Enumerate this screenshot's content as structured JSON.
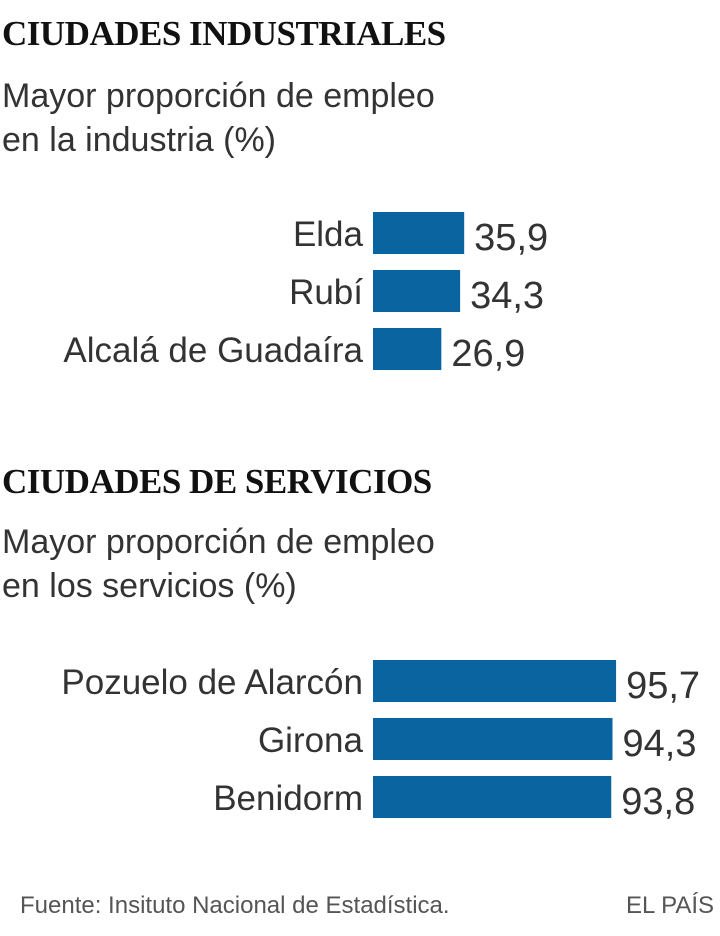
{
  "chart_data": [
    {
      "type": "bar",
      "orientation": "horizontal",
      "title": "CIUDADES INDUSTRIALES",
      "subtitle": "Mayor proporción de empleo en la industria (%)",
      "subtitle_lines": [
        "Mayor proporción de empleo",
        "en la industria (%)"
      ],
      "categories": [
        "Elda",
        "Rubí",
        "Alcalá de Guadaíra"
      ],
      "values": [
        35.9,
        34.3,
        26.9
      ],
      "labels": [
        "35,9",
        "34,3",
        "26,9"
      ],
      "color": "#0a64a0",
      "xlim": [
        0,
        100
      ],
      "grid": false
    },
    {
      "type": "bar",
      "orientation": "horizontal",
      "title": "CIUDADES DE SERVICIOS",
      "subtitle": "Mayor proporción de empleo en los servicios (%)",
      "subtitle_lines": [
        "Mayor proporción de empleo",
        "en los servicios (%)"
      ],
      "categories": [
        "Pozuelo de Alarcón",
        "Girona",
        "Benidorm"
      ],
      "values": [
        95.7,
        94.3,
        93.8
      ],
      "labels": [
        "95,7",
        "94,3",
        "93,8"
      ],
      "color": "#0a64a0",
      "xlim": [
        0,
        100
      ],
      "grid": false
    }
  ],
  "footer": {
    "source": "Fuente: Insituto Nacional de Estadística.",
    "brand": "EL PAÍS"
  }
}
